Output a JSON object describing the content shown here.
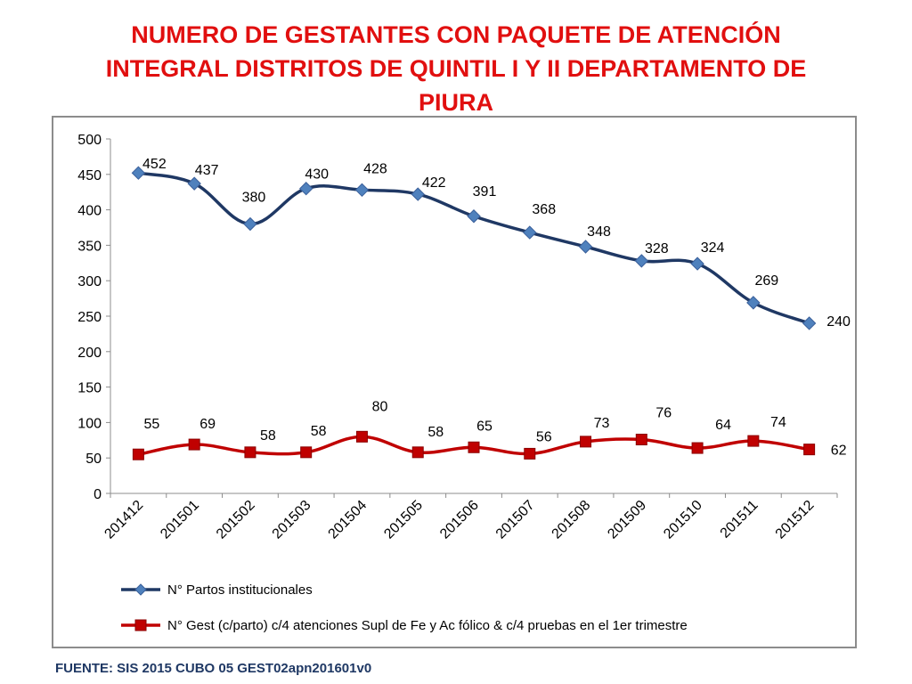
{
  "title": {
    "line1": "NUMERO DE GESTANTES CON PAQUETE DE ATENCIÓN",
    "line2": "INTEGRAL  DISTRITOS DE QUINTIL I Y II DEPARTAMENTO DE",
    "line3": "PIURA"
  },
  "source": "FUENTE: SIS 2015 CUBO 05 GEST02apn201601v0",
  "chart_data": {
    "type": "line",
    "title": "NUMERO DE GESTANTES CON PAQUETE DE ATENCIÓN INTEGRAL  DISTRITOS DE QUINTIL I Y II DEPARTAMENTO DE PIURA",
    "categories": [
      "201412",
      "201501",
      "201502",
      "201503",
      "201504",
      "201505",
      "201506",
      "201507",
      "201508",
      "201509",
      "201510",
      "201511",
      "201512"
    ],
    "ylim": [
      0,
      500
    ],
    "yticks": [
      0,
      50,
      100,
      150,
      200,
      250,
      300,
      350,
      400,
      450,
      500
    ],
    "xlabel": "",
    "ylabel": "",
    "grid": false,
    "legend_position": "bottom",
    "series": [
      {
        "name": "N° Partos institucionales",
        "color": "#1f3864",
        "marker_color": "#4f81bd",
        "marker": "diamond",
        "values": [
          452,
          437,
          380,
          430,
          428,
          422,
          391,
          368,
          348,
          328,
          324,
          269,
          240
        ]
      },
      {
        "name": "N° Gest (c/parto) c/4 atenciones Supl de Fe y Ac fólico & c/4 pruebas en el 1er trimestre",
        "color": "#c00000",
        "marker_color": "#c00000",
        "marker": "square",
        "values": [
          55,
          69,
          58,
          58,
          80,
          58,
          65,
          56,
          73,
          76,
          64,
          74,
          62
        ]
      }
    ]
  }
}
